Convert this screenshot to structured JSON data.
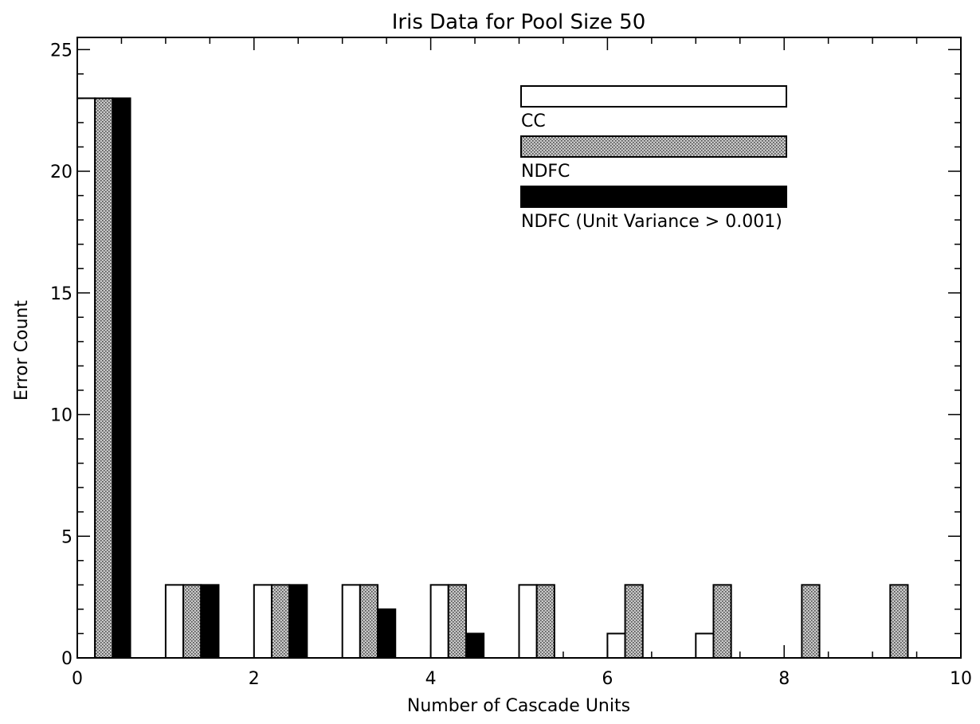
{
  "chart_data": {
    "type": "bar",
    "title": "Iris Data for Pool Size 50",
    "xlabel": "Number of Cascade Units",
    "ylabel": "Error Count",
    "xlim": [
      0,
      10
    ],
    "ylim": [
      0,
      25.5
    ],
    "xticks": [
      0,
      2,
      4,
      6,
      8,
      10
    ],
    "yticks": [
      0,
      5,
      10,
      15,
      20,
      25
    ],
    "xtick_labels": [
      "0",
      "2",
      "4",
      "6",
      "8",
      "10"
    ],
    "ytick_labels": [
      "0",
      "5",
      "10",
      "15",
      "20",
      "25"
    ],
    "grid": false,
    "legend_position": "top-right",
    "categories": [
      0,
      1,
      2,
      3,
      4,
      5,
      6,
      7,
      8,
      9
    ],
    "series": [
      {
        "name": "CC",
        "color": "#ffffff",
        "pattern": "none",
        "values": [
          23,
          3,
          3,
          3,
          3,
          3,
          1,
          1,
          0,
          0
        ]
      },
      {
        "name": "NDFC",
        "color": "#b0b0b0",
        "pattern": "dots",
        "values": [
          23,
          3,
          3,
          3,
          3,
          3,
          3,
          3,
          3,
          3
        ]
      },
      {
        "name": "NDFC (Unit Variance > 0.001)",
        "color": "#000000",
        "pattern": "none",
        "values": [
          23,
          3,
          3,
          2,
          1,
          0,
          0,
          0,
          0,
          0
        ]
      }
    ]
  }
}
